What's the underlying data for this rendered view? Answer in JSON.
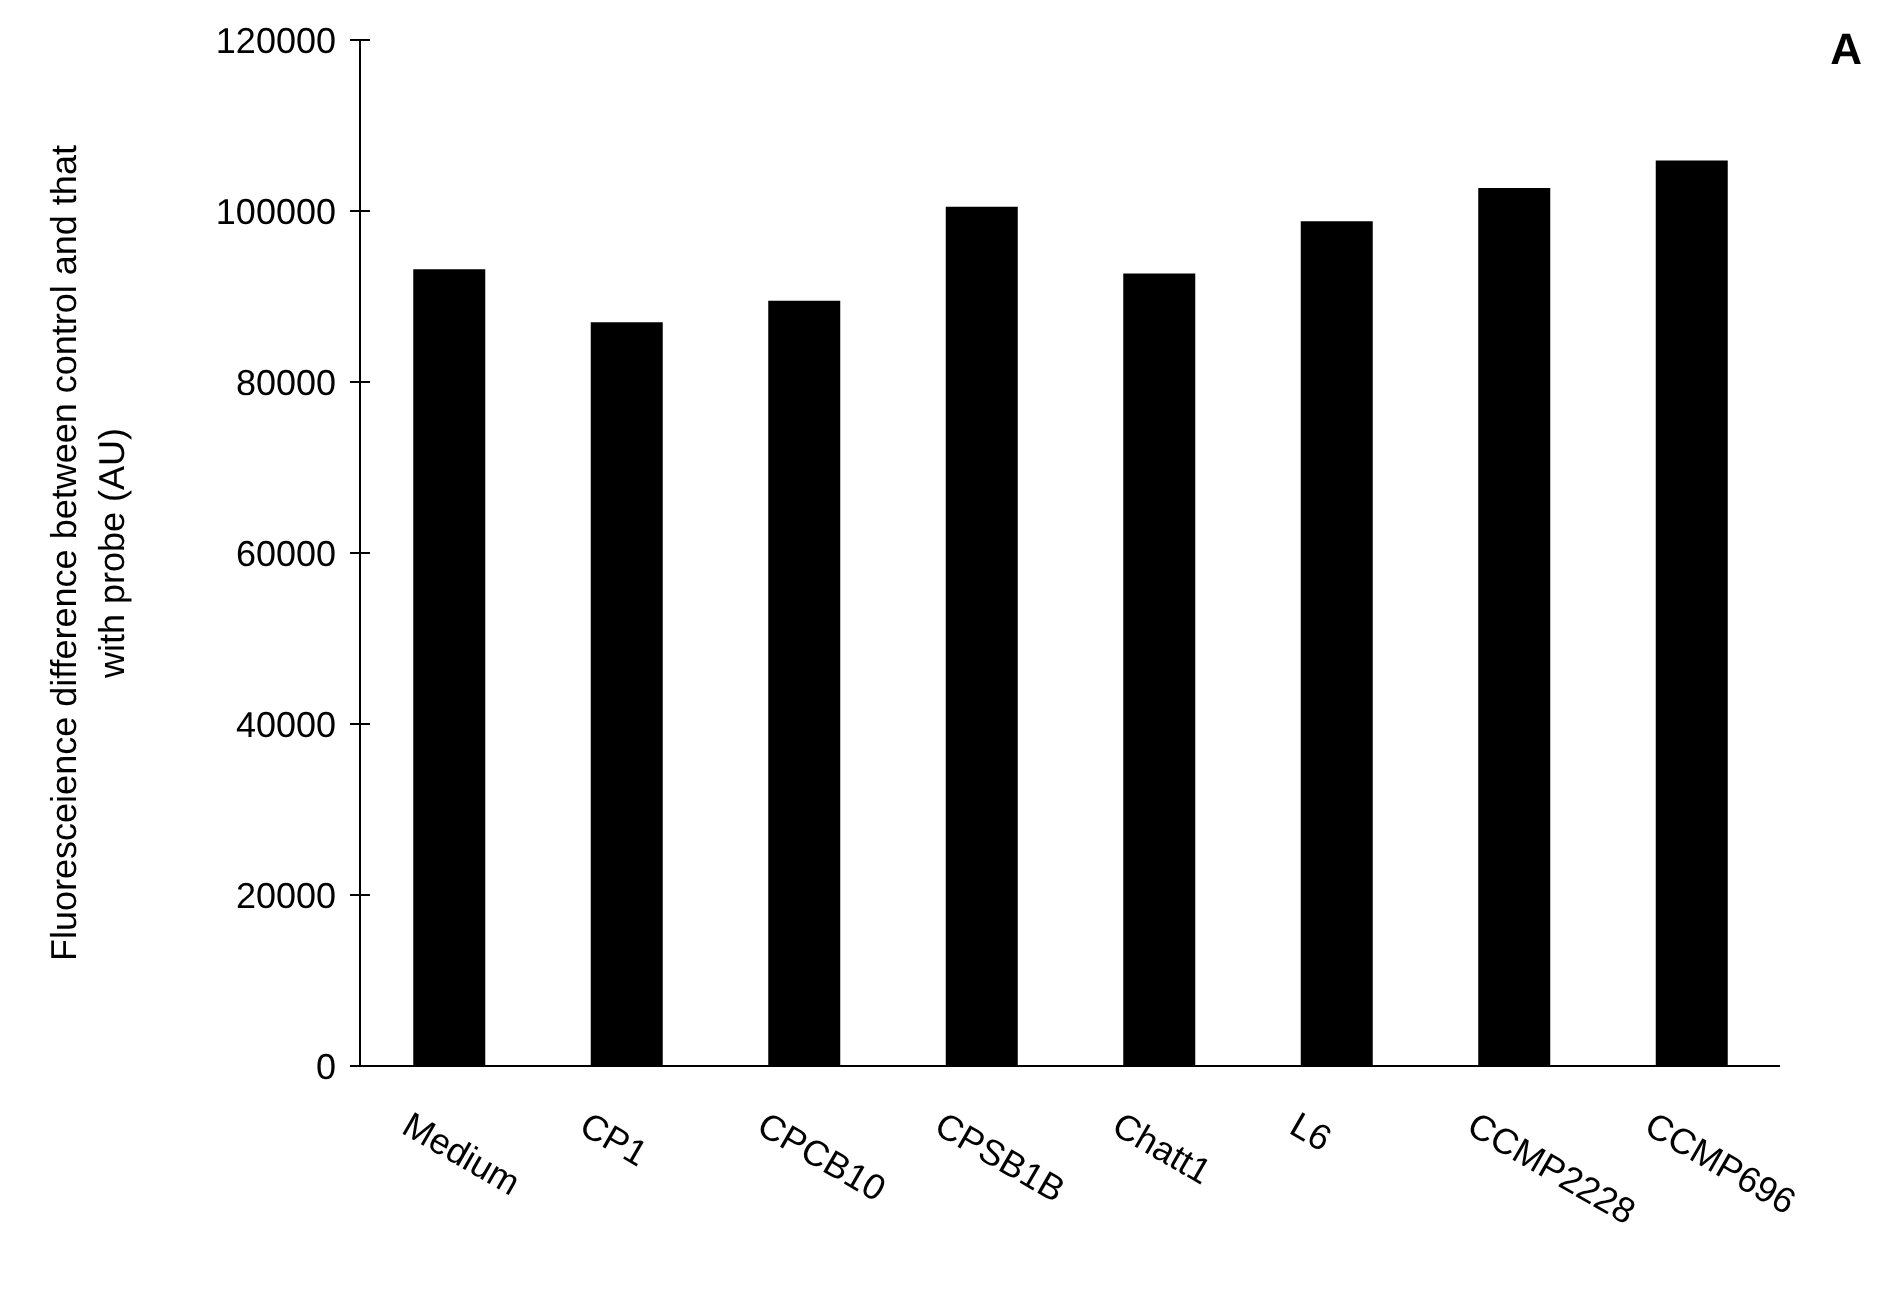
{
  "chart_data": {
    "type": "bar",
    "title": "A",
    "ylabel": "Fluoresceience difference between control and that\nwith probe (AU)",
    "categories": [
      "Medium",
      "CP1",
      "CPCB10",
      "CPSB1B",
      "Chatt1",
      "L6",
      "CCMP2228",
      "CCMP696"
    ],
    "values": [
      93200,
      87000,
      89500,
      100500,
      92700,
      98800,
      102700,
      105900
    ],
    "color": "#000000",
    "ylim": [
      0,
      120000
    ],
    "yticks": [
      0,
      20000,
      40000,
      60000,
      80000,
      100000,
      120000
    ],
    "grid": false,
    "legend": false
  }
}
